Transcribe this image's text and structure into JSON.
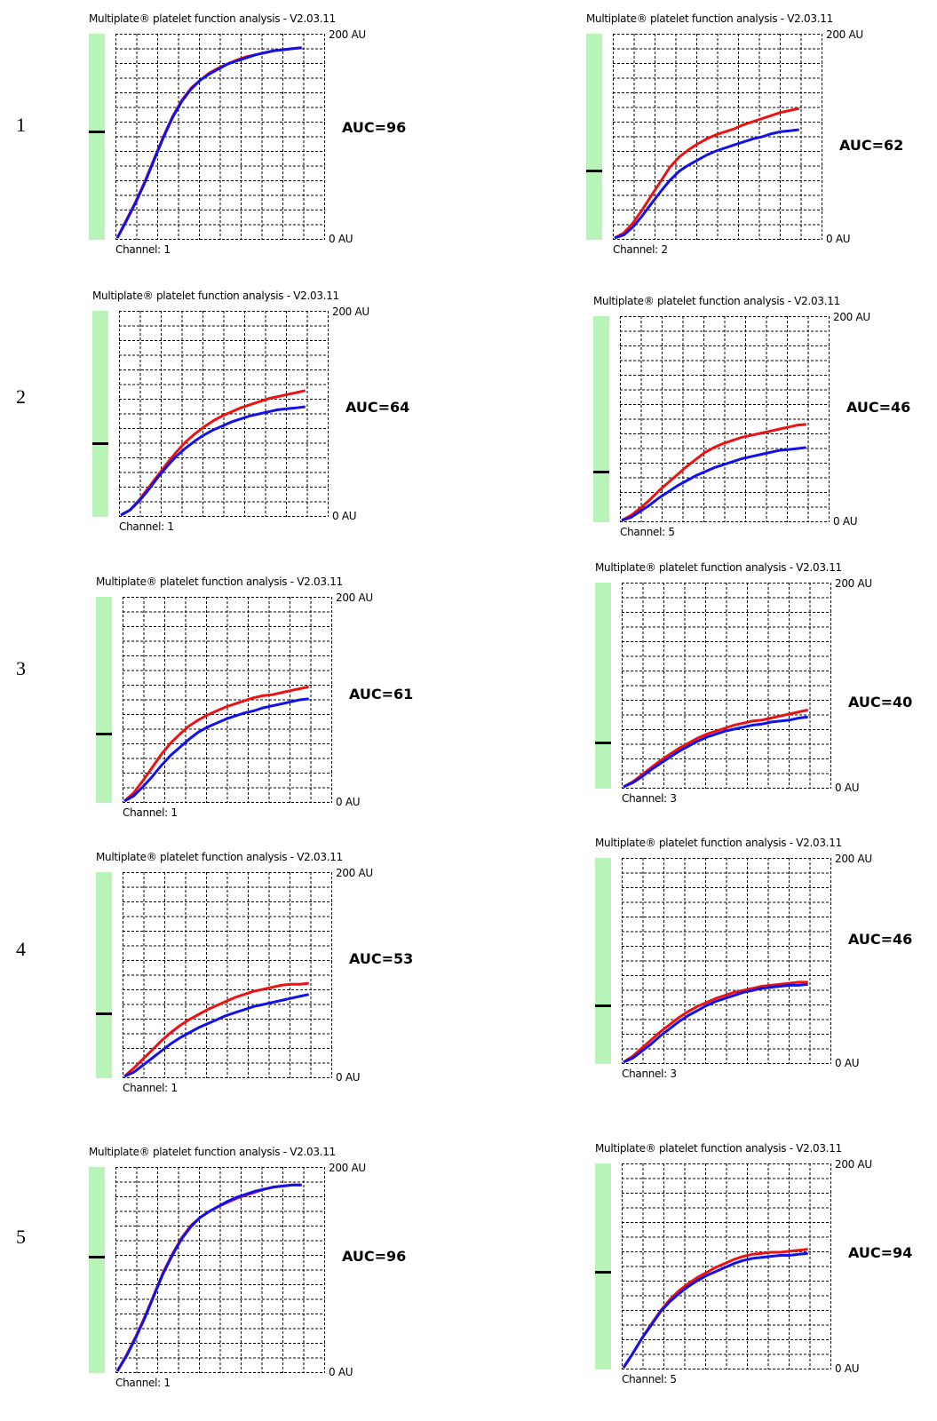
{
  "software_title": "Multiplate® platelet function analysis - V2.03.11",
  "y_top_label": "200 AU",
  "y_bottom_label": "0 AU",
  "colors": {
    "red_curve": "#ee1111",
    "blue_curve": "#1111ee",
    "bar": "#b8f3b8",
    "grid": "#000000"
  },
  "rows": [
    "1",
    "2",
    "3",
    "4",
    "5"
  ],
  "chart_data": [
    {
      "type": "line",
      "title": "Multiplate® platelet function analysis - V2.03.11",
      "channel": "Channel: 1",
      "auc": "AUC=96",
      "ylim": [
        0,
        200
      ],
      "xlim": [
        0,
        10
      ],
      "bar_mark": 0.53,
      "x": [
        0,
        0.5,
        1,
        1.5,
        2,
        2.5,
        3,
        3.5,
        4,
        4.5,
        5,
        5.5,
        6,
        6.5,
        7,
        7.5,
        8,
        8.5,
        9,
        9.5,
        10
      ],
      "series": [
        {
          "color": "#ee1111",
          "values": [
            0,
            18,
            36,
            56,
            78,
            100,
            120,
            136,
            148,
            156,
            163,
            168,
            172,
            176,
            179,
            181,
            183,
            185,
            186,
            187,
            188
          ]
        },
        {
          "color": "#1111ee",
          "values": [
            0,
            17,
            35,
            55,
            77,
            99,
            119,
            135,
            147,
            156,
            162,
            167,
            172,
            175,
            178,
            181,
            183,
            185,
            186,
            187,
            188
          ]
        }
      ]
    },
    {
      "type": "line",
      "title": "Multiplate® platelet function analysis - V2.03.11",
      "channel": "Channel: 2",
      "auc": "AUC=62",
      "ylim": [
        0,
        200
      ],
      "xlim": [
        0,
        10
      ],
      "bar_mark": 0.34,
      "x": [
        0,
        0.5,
        1,
        1.5,
        2,
        2.5,
        3,
        3.5,
        4,
        4.5,
        5,
        5.5,
        6,
        6.5,
        7,
        7.5,
        8,
        8.5,
        9,
        9.5,
        10
      ],
      "series": [
        {
          "color": "#ee1111",
          "values": [
            0,
            5,
            15,
            28,
            42,
            56,
            70,
            80,
            87,
            93,
            98,
            102,
            105,
            108,
            112,
            115,
            118,
            121,
            124,
            126,
            128
          ]
        },
        {
          "color": "#1111ee",
          "values": [
            0,
            3,
            11,
            22,
            34,
            46,
            57,
            66,
            72,
            77,
            82,
            86,
            89,
            92,
            95,
            98,
            100,
            103,
            105,
            106,
            107
          ]
        }
      ]
    },
    {
      "type": "line",
      "title": "Multiplate® platelet function analysis - V2.03.11",
      "channel": "Channel: 1",
      "auc": "AUC=64",
      "ylim": [
        0,
        200
      ],
      "xlim": [
        0,
        10
      ],
      "bar_mark": 0.36,
      "x": [
        0,
        0.5,
        1,
        1.5,
        2,
        2.5,
        3,
        3.5,
        4,
        4.5,
        5,
        5.5,
        6,
        6.5,
        7,
        7.5,
        8,
        8.5,
        9,
        9.5,
        10
      ],
      "series": [
        {
          "color": "#ee1111",
          "values": [
            0,
            5,
            15,
            27,
            39,
            51,
            62,
            72,
            80,
            87,
            93,
            98,
            102,
            106,
            109,
            112,
            115,
            117,
            119,
            121,
            123
          ]
        },
        {
          "color": "#1111ee",
          "values": [
            0,
            5,
            14,
            25,
            37,
            48,
            58,
            66,
            73,
            79,
            84,
            88,
            92,
            95,
            98,
            100,
            102,
            104,
            105,
            106,
            107
          ]
        }
      ]
    },
    {
      "type": "line",
      "title": "Multiplate® platelet function analysis - V2.03.11",
      "channel": "Channel: 5",
      "auc": "AUC=46",
      "ylim": [
        0,
        200
      ],
      "xlim": [
        0,
        10
      ],
      "bar_mark": 0.25,
      "x": [
        0,
        0.5,
        1,
        1.5,
        2,
        2.5,
        3,
        3.5,
        4,
        4.5,
        5,
        5.5,
        6,
        6.5,
        7,
        7.5,
        8,
        8.5,
        9,
        9.5,
        10
      ],
      "series": [
        {
          "color": "#ee1111",
          "values": [
            0,
            5,
            12,
            20,
            29,
            37,
            45,
            53,
            60,
            67,
            72,
            76,
            79,
            82,
            84,
            86,
            88,
            90,
            92,
            94,
            95
          ]
        },
        {
          "color": "#1111ee",
          "values": [
            0,
            3,
            9,
            15,
            22,
            28,
            34,
            39,
            44,
            48,
            52,
            55,
            58,
            61,
            63,
            65,
            67,
            69,
            70,
            71,
            72
          ]
        }
      ]
    },
    {
      "type": "line",
      "title": "Multiplate® platelet function analysis - V2.03.11",
      "channel": "Channel: 1",
      "auc": "AUC=61",
      "ylim": [
        0,
        200
      ],
      "xlim": [
        0,
        10
      ],
      "bar_mark": 0.34,
      "x": [
        0,
        0.5,
        1,
        1.5,
        2,
        2.5,
        3,
        3.5,
        4,
        4.5,
        5,
        5.5,
        6,
        6.5,
        7,
        7.5,
        8,
        8.5,
        9,
        9.5,
        10
      ],
      "series": [
        {
          "color": "#ee1111",
          "values": [
            0,
            8,
            20,
            33,
            46,
            57,
            66,
            74,
            80,
            85,
            89,
            93,
            96,
            99,
            102,
            104,
            105,
            107,
            109,
            111,
            113
          ]
        },
        {
          "color": "#1111ee",
          "values": [
            0,
            5,
            14,
            24,
            35,
            45,
            53,
            61,
            68,
            73,
            77,
            81,
            84,
            87,
            89,
            92,
            94,
            96,
            98,
            100,
            101
          ]
        }
      ]
    },
    {
      "type": "line",
      "title": "Multiplate® platelet function analysis - V2.03.11",
      "channel": "Channel: 3",
      "auc": "AUC=40",
      "ylim": [
        0,
        200
      ],
      "xlim": [
        0,
        10
      ],
      "bar_mark": 0.23,
      "x": [
        0,
        0.5,
        1,
        1.5,
        2,
        2.5,
        3,
        3.5,
        4,
        4.5,
        5,
        5.5,
        6,
        6.5,
        7,
        7.5,
        8,
        8.5,
        9,
        9.5,
        10
      ],
      "series": [
        {
          "color": "#ee1111",
          "values": [
            0,
            5,
            12,
            19,
            26,
            32,
            38,
            43,
            48,
            52,
            55,
            58,
            61,
            63,
            65,
            66,
            68,
            70,
            72,
            74,
            76
          ]
        },
        {
          "color": "#1111ee",
          "values": [
            0,
            4,
            10,
            17,
            23,
            29,
            35,
            40,
            45,
            49,
            52,
            55,
            57,
            59,
            61,
            62,
            64,
            65,
            66,
            68,
            69
          ]
        }
      ]
    },
    {
      "type": "line",
      "title": "Multiplate® platelet function analysis - V2.03.11",
      "channel": "Channel: 1",
      "auc": "AUC=53",
      "ylim": [
        0,
        200
      ],
      "xlim": [
        0,
        10
      ],
      "bar_mark": 0.32,
      "x": [
        0,
        0.5,
        1,
        1.5,
        2,
        2.5,
        3,
        3.5,
        4,
        4.5,
        5,
        5.5,
        6,
        6.5,
        7,
        7.5,
        8,
        8.5,
        9,
        9.5,
        10
      ],
      "series": [
        {
          "color": "#ee1111",
          "values": [
            0,
            8,
            17,
            26,
            35,
            43,
            50,
            56,
            61,
            66,
            70,
            74,
            78,
            81,
            84,
            86,
            88,
            90,
            91,
            91,
            92
          ]
        },
        {
          "color": "#1111ee",
          "values": [
            0,
            4,
            11,
            18,
            25,
            32,
            38,
            43,
            48,
            52,
            56,
            60,
            63,
            66,
            69,
            71,
            73,
            75,
            77,
            79,
            81
          ]
        }
      ]
    },
    {
      "type": "line",
      "title": "Multiplate® platelet function analysis - V2.03.11",
      "channel": "Channel: 3",
      "auc": "AUC=46",
      "ylim": [
        0,
        200
      ],
      "xlim": [
        0,
        10
      ],
      "bar_mark": 0.29,
      "x": [
        0,
        0.5,
        1,
        1.5,
        2,
        2.5,
        3,
        3.5,
        4,
        4.5,
        5,
        5.5,
        6,
        6.5,
        7,
        7.5,
        8,
        8.5,
        9,
        9.5,
        10
      ],
      "series": [
        {
          "color": "#ee1111",
          "values": [
            0,
            6,
            14,
            22,
            30,
            37,
            44,
            50,
            55,
            59,
            63,
            66,
            69,
            71,
            73,
            75,
            76,
            77,
            78,
            79,
            79
          ]
        },
        {
          "color": "#1111ee",
          "values": [
            0,
            4,
            11,
            18,
            26,
            33,
            40,
            46,
            51,
            56,
            60,
            63,
            66,
            69,
            71,
            73,
            74,
            75,
            76,
            76,
            77
          ]
        }
      ]
    },
    {
      "type": "line",
      "title": "Multiplate® platelet function analysis - V2.03.11",
      "channel": "Channel: 1",
      "auc": "AUC=96",
      "ylim": [
        0,
        200
      ],
      "xlim": [
        0,
        10
      ],
      "bar_mark": 0.57,
      "x": [
        0,
        0.5,
        1,
        1.5,
        2,
        2.5,
        3,
        3.5,
        4,
        4.5,
        5,
        5.5,
        6,
        6.5,
        7,
        7.5,
        8,
        8.5,
        9,
        9.5,
        10
      ],
      "series": [
        {
          "color": "#ee1111",
          "values": [
            0,
            16,
            34,
            54,
            76,
            98,
            116,
            132,
            144,
            152,
            158,
            163,
            167,
            171,
            174,
            177,
            180,
            182,
            183,
            184,
            184
          ]
        },
        {
          "color": "#1111ee",
          "values": [
            0,
            15,
            33,
            53,
            75,
            97,
            115,
            131,
            143,
            152,
            158,
            163,
            168,
            172,
            175,
            178,
            180,
            182,
            183,
            184,
            184
          ]
        }
      ]
    },
    {
      "type": "line",
      "title": "Multiplate® platelet function analysis - V2.03.11",
      "channel": "Channel: 5",
      "auc": "AUC=94",
      "ylim": [
        0,
        200
      ],
      "xlim": [
        0,
        10
      ],
      "bar_mark": 0.48,
      "x": [
        0,
        0.5,
        1,
        1.5,
        2,
        2.5,
        3,
        3.5,
        4,
        4.5,
        5,
        5.5,
        6,
        6.5,
        7,
        7.5,
        8,
        8.5,
        9,
        9.5,
        10
      ],
      "series": [
        {
          "color": "#ee1111",
          "values": [
            0,
            14,
            29,
            43,
            56,
            67,
            76,
            83,
            89,
            94,
            99,
            103,
            107,
            110,
            112,
            113,
            114,
            114,
            115,
            116,
            117
          ]
        },
        {
          "color": "#1111ee",
          "values": [
            0,
            14,
            29,
            42,
            55,
            65,
            73,
            80,
            86,
            91,
            95,
            99,
            103,
            106,
            108,
            109,
            110,
            111,
            111,
            112,
            113
          ]
        }
      ]
    }
  ]
}
